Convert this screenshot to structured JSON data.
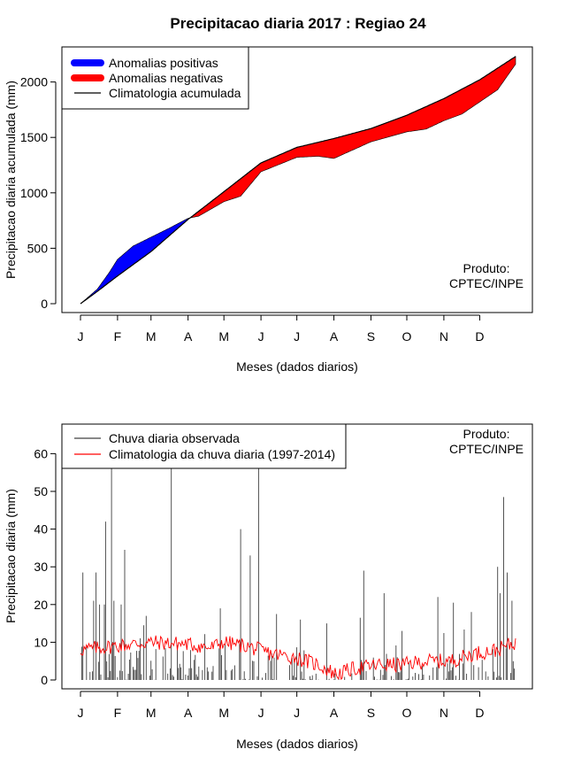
{
  "chart_data": [
    {
      "type": "area",
      "title": "Precipitacao diaria 2017 : Regiao 24",
      "xlabel": "Meses (dados diarios)",
      "ylabel": "Precipitacao diaria acumulada (mm)",
      "month_ticks": [
        "J",
        "F",
        "M",
        "A",
        "M",
        "J",
        "J",
        "A",
        "S",
        "O",
        "N",
        "D"
      ],
      "month_start_day": [
        1,
        32,
        60,
        91,
        121,
        152,
        182,
        213,
        244,
        274,
        305,
        335
      ],
      "yticks": [
        0,
        500,
        1000,
        1500,
        2000
      ],
      "xlim": [
        1,
        365
      ],
      "ylim": [
        0,
        2250
      ],
      "legend": [
        "Anomalias positivas",
        "Anomalias negativas",
        "Climatologia acumulada"
      ],
      "colors": {
        "positive": "#0000ff",
        "negative": "#ff0000",
        "climatology": "#000000"
      },
      "climatology_days": [
        1,
        15,
        32,
        60,
        91,
        121,
        152,
        182,
        213,
        244,
        274,
        305,
        335,
        365
      ],
      "climatology_acumulada": [
        0,
        110,
        250,
        470,
        760,
        1010,
        1270,
        1410,
        1490,
        1580,
        1700,
        1850,
        2020,
        2230
      ],
      "observed_days": [
        1,
        15,
        25,
        32,
        45,
        60,
        75,
        91,
        100,
        121,
        135,
        152,
        182,
        200,
        213,
        244,
        274,
        290,
        305,
        320,
        335,
        350,
        365
      ],
      "observed_acumulada": [
        0,
        130,
        280,
        400,
        520,
        600,
        680,
        770,
        790,
        920,
        970,
        1190,
        1320,
        1330,
        1310,
        1460,
        1550,
        1575,
        1650,
        1710,
        1820,
        1930,
        2160
      ],
      "note": "Produto:\nCPTEC/INPE",
      "note_lines": [
        "Produto:",
        "CPTEC/INPE"
      ]
    },
    {
      "type": "bar",
      "title": "",
      "xlabel": "Meses (dados diarios)",
      "ylabel": "Precipitacao diaria (mm)",
      "month_ticks": [
        "J",
        "F",
        "M",
        "A",
        "M",
        "J",
        "J",
        "A",
        "S",
        "O",
        "N",
        "D"
      ],
      "yticks": [
        0,
        10,
        20,
        30,
        40,
        50,
        60
      ],
      "xlim": [
        1,
        365
      ],
      "ylim": [
        0,
        67
      ],
      "legend": [
        "Chuva diaria observada",
        "Climatologia da chuva diaria (1997-2014)"
      ],
      "colors": {
        "observed": "#404040",
        "climatology": "#ff0000"
      },
      "observed_spikes": [
        {
          "day": 3,
          "value": 28.5
        },
        {
          "day": 12,
          "value": 21
        },
        {
          "day": 14,
          "value": 28.5
        },
        {
          "day": 17,
          "value": 20
        },
        {
          "day": 21,
          "value": 20
        },
        {
          "day": 22,
          "value": 42
        },
        {
          "day": 27,
          "value": 57
        },
        {
          "day": 29,
          "value": 21
        },
        {
          "day": 35,
          "value": 20
        },
        {
          "day": 38,
          "value": 34.5
        },
        {
          "day": 54,
          "value": 14.5
        },
        {
          "day": 56,
          "value": 17
        },
        {
          "day": 77,
          "value": 57
        },
        {
          "day": 118,
          "value": 19
        },
        {
          "day": 135,
          "value": 40
        },
        {
          "day": 143,
          "value": 33
        },
        {
          "day": 150,
          "value": 57
        },
        {
          "day": 165,
          "value": 17.5
        },
        {
          "day": 185,
          "value": 16
        },
        {
          "day": 207,
          "value": 15
        },
        {
          "day": 235,
          "value": 16.5
        },
        {
          "day": 238,
          "value": 29
        },
        {
          "day": 255,
          "value": 23
        },
        {
          "day": 270,
          "value": 13
        },
        {
          "day": 300,
          "value": 22
        },
        {
          "day": 313,
          "value": 20.5
        },
        {
          "day": 328,
          "value": 18
        },
        {
          "day": 350,
          "value": 30
        },
        {
          "day": 352,
          "value": 23
        },
        {
          "day": 355,
          "value": 48.5
        },
        {
          "day": 358,
          "value": 28.5
        },
        {
          "day": 362,
          "value": 21
        }
      ],
      "climatology_days": [
        1,
        30,
        60,
        90,
        110,
        120,
        140,
        160,
        180,
        200,
        215,
        230,
        250,
        270,
        290,
        310,
        330,
        350,
        365
      ],
      "climatology_values": [
        8,
        9,
        10,
        9.5,
        8.5,
        10,
        9,
        7,
        6,
        4,
        1.5,
        3,
        4,
        4,
        5,
        5,
        7,
        8,
        10
      ],
      "note_lines": [
        "Produto:",
        "CPTEC/INPE"
      ]
    }
  ]
}
